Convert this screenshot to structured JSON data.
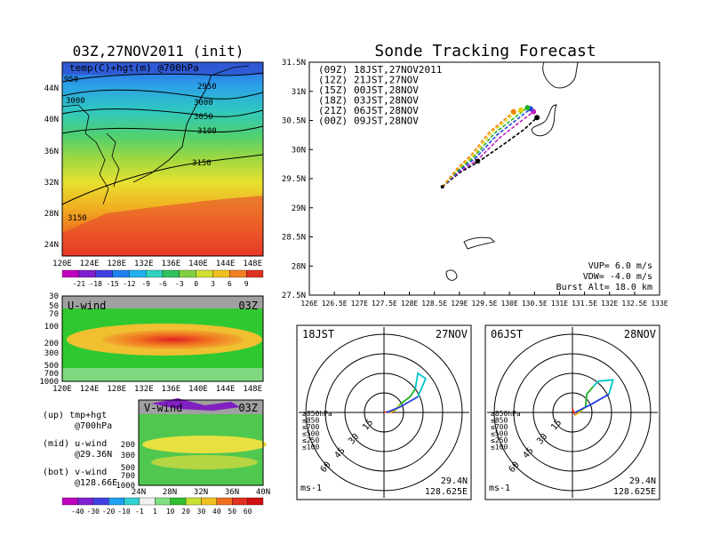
{
  "left_title": "03Z,27NOV2011 (init)",
  "right_title": "Sonde Tracking Forecast",
  "temp_panel": {
    "label": "temp(C)+hgt(m) @700hPa",
    "contours": [
      "950",
      "2950",
      "3000",
      "3000",
      "3050",
      "3100",
      "3150",
      "3150"
    ],
    "lat_ticks": [
      "44N",
      "40N",
      "36N",
      "32N",
      "28N",
      "24N"
    ],
    "lon_ticks": [
      "120E",
      "124E",
      "128E",
      "132E",
      "136E",
      "140E",
      "144E",
      "148E"
    ],
    "colorbar": [
      "-21",
      "-18",
      "-15",
      "-12",
      "-9",
      "-6",
      "-3",
      "0",
      "3",
      "6",
      "9"
    ]
  },
  "u_panel": {
    "label": "U-wind",
    "time": "03Z",
    "p_ticks": [
      "30",
      "50",
      "70",
      "100",
      "200",
      "300",
      "500",
      "700",
      "1000"
    ],
    "lon_ticks": [
      "120E",
      "124E",
      "128E",
      "132E",
      "136E",
      "140E",
      "144E",
      "148E"
    ]
  },
  "v_panel": {
    "label": "V-wind",
    "time": "03Z",
    "p_ticks": [
      "200",
      "300",
      "500",
      "700",
      "1000"
    ],
    "lat_ticks": [
      "24N",
      "28N",
      "32N",
      "36N",
      "40N"
    ],
    "colorbar": [
      "-40",
      "-30",
      "-20",
      "-10",
      "-1",
      "1",
      "10",
      "20",
      "30",
      "40",
      "50",
      "60"
    ]
  },
  "legend_notes": [
    {
      "line1": "(up) tmp+hgt",
      "line2": "@700hPa"
    },
    {
      "line1": "(mid) u-wind",
      "line2": "@29.36N"
    },
    {
      "line1": "(bot) v-wind",
      "line2": "@128.66E"
    }
  ],
  "track_panel": {
    "lat_ticks": [
      "31.5N",
      "31N",
      "30.5N",
      "30N",
      "29.5N",
      "29N",
      "28.5N",
      "28N",
      "27.5N"
    ],
    "lon_ticks": [
      "126E",
      "126.5E",
      "127E",
      "127.5E",
      "128E",
      "128.5E",
      "129E",
      "129.5E",
      "130E",
      "130.5E",
      "131E",
      "131.5E",
      "132E",
      "132.5E",
      "133E"
    ],
    "info": [
      "VUP= 6.0 m/s",
      "VDW= -4.0 m/s",
      "Burst Alt= 18.0 km"
    ]
  },
  "hodo_left": {
    "label": "18JST",
    "date": "27NOV",
    "units": "ms-1",
    "lat": "29.4N",
    "lon": "128.625E"
  },
  "hodo_right": {
    "label": "06JST",
    "date": "28NOV",
    "units": "ms-1",
    "lat": "29.4N",
    "lon": "128.625E"
  },
  "hodo_rings": [
    "15",
    "30",
    "45",
    "60"
  ],
  "hodo_legend": [
    {
      "label": "≥850hPa",
      "color": "#e8301c"
    },
    {
      "label": "≤850",
      "color": "#f0a000"
    },
    {
      "label": "≤700",
      "color": "#c8c800"
    },
    {
      "label": "≤500",
      "color": "#20b020"
    },
    {
      "label": "≤250",
      "color": "#00c8c8"
    },
    {
      "label": "≤100",
      "color": "#2040e0"
    }
  ],
  "chart_data": {
    "type": "line",
    "title": "Sonde Tracking Forecast",
    "xlim": [
      126,
      133
    ],
    "ylim": [
      27.5,
      31.5
    ],
    "launch": {
      "lon": 128.66,
      "lat": 29.36
    },
    "series": [
      {
        "name": "(09Z) 18JST,27NOV2011",
        "color": "#000000",
        "dashed": true,
        "x": [
          128.66,
          129.0,
          129.36,
          129.9,
          130.3,
          130.55
        ],
        "y": [
          29.36,
          29.6,
          29.78,
          30.1,
          30.35,
          30.55
        ]
      },
      {
        "name": "(12Z) 21JST,27NOV",
        "color": "#c020c0",
        "dashed": true,
        "x": [
          128.66,
          129.0,
          129.36,
          129.8,
          130.25,
          130.48
        ],
        "y": [
          29.36,
          29.62,
          29.82,
          30.2,
          30.5,
          30.65
        ]
      },
      {
        "name": "(15Z) 00JST,28NOV",
        "color": "#2040e0",
        "dashed": true,
        "x": [
          128.66,
          129.0,
          129.33,
          129.75,
          130.2,
          130.42
        ],
        "y": [
          29.36,
          29.64,
          29.86,
          30.25,
          30.55,
          30.7
        ]
      },
      {
        "name": "(18Z) 03JST,28NOV",
        "color": "#20b020",
        "dashed": true,
        "x": [
          128.66,
          128.98,
          129.3,
          129.7,
          130.15,
          130.36
        ],
        "y": [
          29.36,
          29.65,
          29.88,
          30.28,
          30.58,
          30.72
        ]
      },
      {
        "name": "(21Z) 06JST,28NOV",
        "color": "#e0d000",
        "dashed": true,
        "x": [
          128.66,
          128.96,
          129.28,
          129.65,
          130.05,
          130.23
        ],
        "y": [
          29.36,
          29.66,
          29.9,
          30.3,
          30.58,
          30.68
        ]
      },
      {
        "name": "(00Z) 09JST,28NOV",
        "color": "#f08000",
        "dashed": true,
        "x": [
          128.66,
          128.95,
          129.25,
          129.6,
          129.95,
          130.08
        ],
        "y": [
          29.36,
          29.67,
          29.92,
          30.3,
          30.55,
          30.65
        ]
      }
    ]
  },
  "hodograph_data": {
    "left": [
      {
        "color": "#e8301c",
        "u": [
          0,
          2,
          4
        ],
        "v": [
          0,
          0.5,
          0
        ]
      },
      {
        "color": "#f0a000",
        "u": [
          4,
          8
        ],
        "v": [
          0,
          1
        ]
      },
      {
        "color": "#c8c800",
        "u": [
          8,
          12
        ],
        "v": [
          1,
          6
        ]
      },
      {
        "color": "#20b020",
        "u": [
          12,
          20,
          24
        ],
        "v": [
          6,
          12,
          18
        ]
      },
      {
        "color": "#00c8c8",
        "u": [
          24,
          26,
          32,
          26
        ],
        "v": [
          18,
          30,
          26,
          12
        ]
      },
      {
        "color": "#2040e0",
        "u": [
          26,
          12,
          2
        ],
        "v": [
          12,
          4,
          0
        ]
      }
    ],
    "right": [
      {
        "color": "#e8301c",
        "u": [
          0,
          1,
          2
        ],
        "v": [
          3,
          0,
          -2
        ]
      },
      {
        "color": "#f0a000",
        "u": [
          2,
          5
        ],
        "v": [
          -2,
          0
        ]
      },
      {
        "color": "#c8c800",
        "u": [
          5,
          10
        ],
        "v": [
          0,
          4
        ]
      },
      {
        "color": "#20b020",
        "u": [
          10,
          11,
          16
        ],
        "v": [
          4,
          14,
          20
        ]
      },
      {
        "color": "#00c8c8",
        "u": [
          16,
          20,
          31,
          28
        ],
        "v": [
          20,
          24,
          25,
          14
        ]
      },
      {
        "color": "#2040e0",
        "u": [
          28,
          14,
          2
        ],
        "v": [
          14,
          6,
          0
        ]
      }
    ]
  }
}
